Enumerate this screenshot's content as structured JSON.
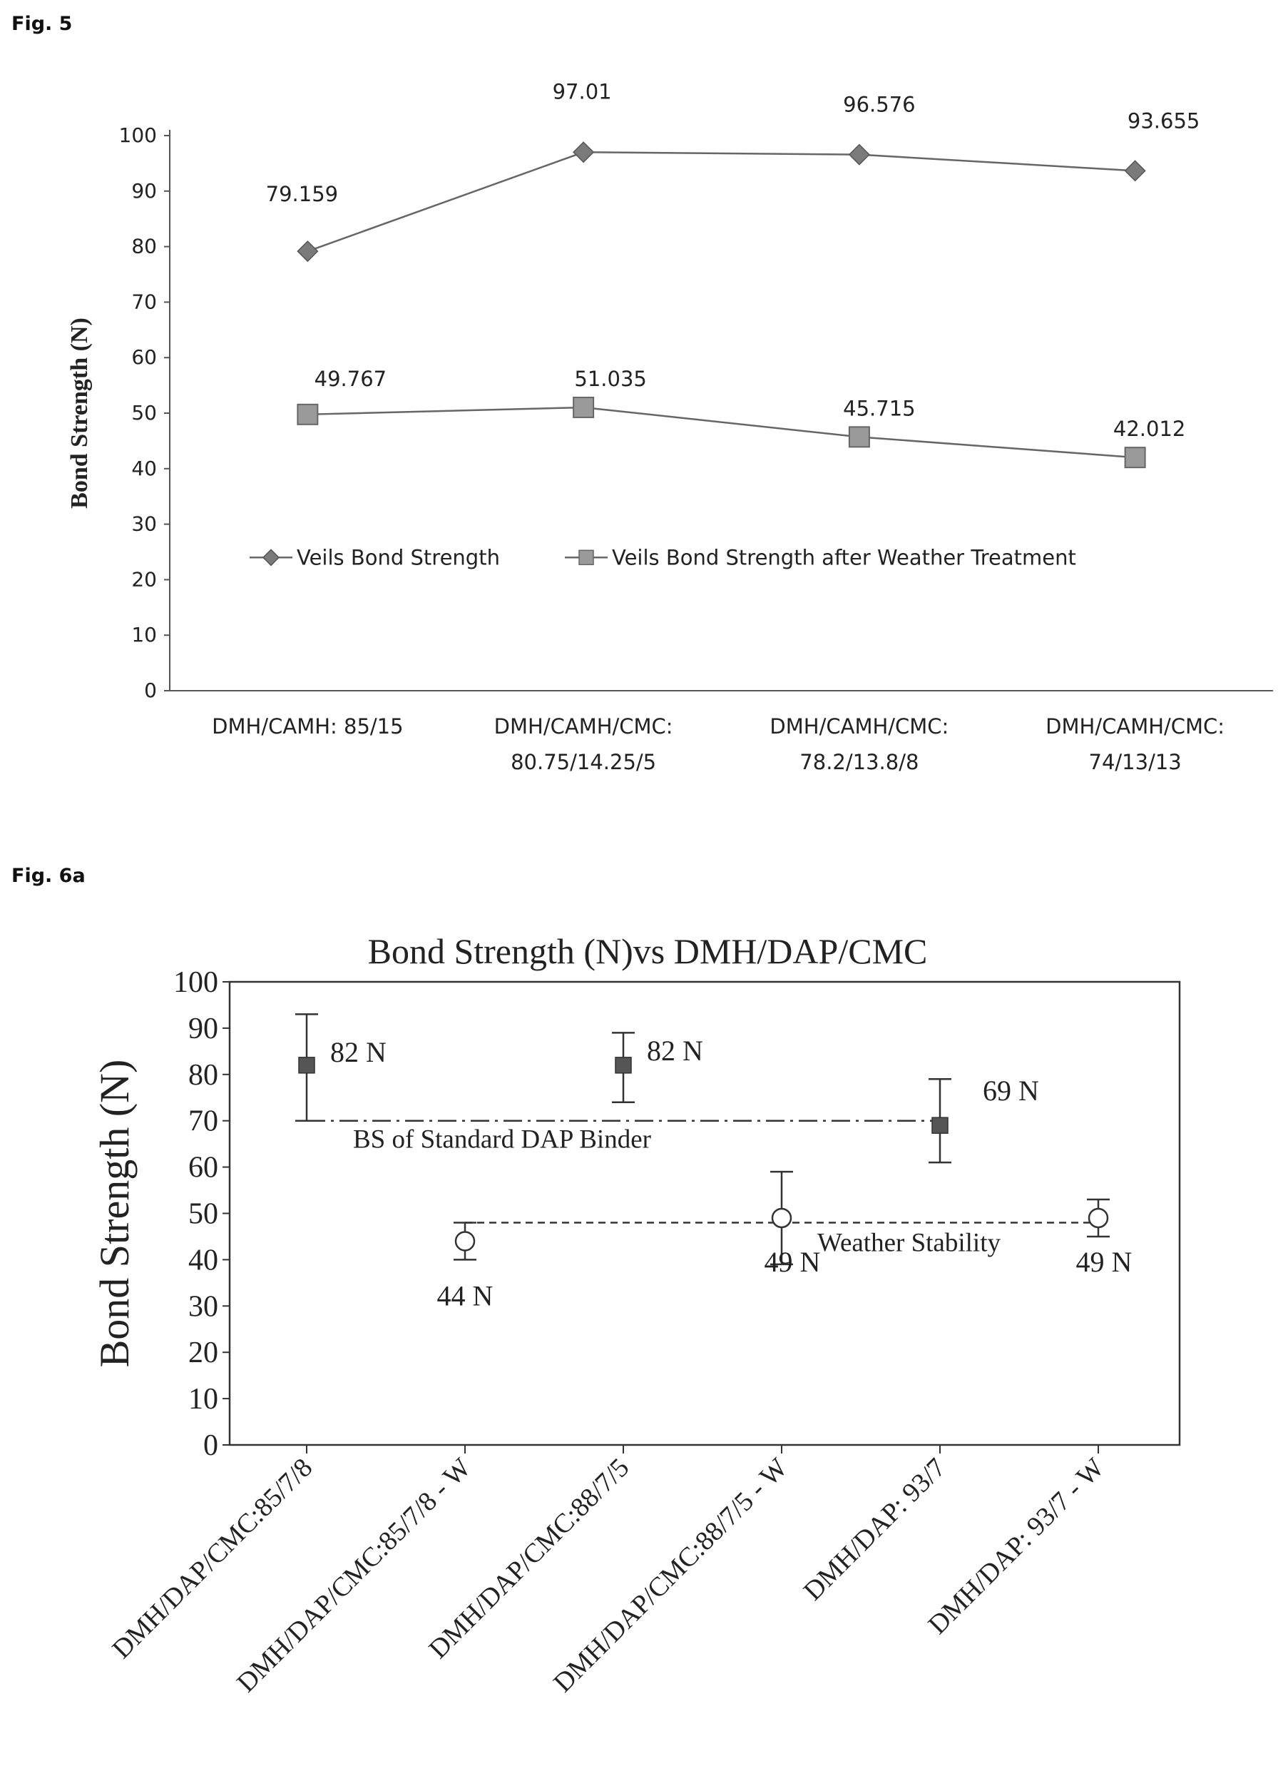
{
  "figures": {
    "fig5_label": "Fig. 5",
    "fig6a_label": "Fig. 6a"
  },
  "chart_data": [
    {
      "type": "line",
      "title": "",
      "xlabel": "",
      "ylabel": "Bond Strength (N)",
      "ylim": [
        0,
        100
      ],
      "yticks": [
        0,
        10,
        20,
        30,
        40,
        50,
        60,
        70,
        80,
        90,
        100
      ],
      "categories": [
        [
          "DMH/CAMH: 85/15"
        ],
        [
          "DMH/CAMH/CMC:",
          "80.75/14.25/5"
        ],
        [
          "DMH/CAMH/CMC:",
          "78.2/13.8/8"
        ],
        [
          "DMH/CAMH/CMC:",
          "74/13/13"
        ]
      ],
      "series": [
        {
          "name": "Veils Bond Strength",
          "marker": "diamond",
          "color": "#7a7a7a",
          "values": [
            79.159,
            97.01,
            96.576,
            93.655
          ],
          "labels": [
            "79.159",
            "97.01",
            "96.576",
            "93.655"
          ]
        },
        {
          "name": "Veils Bond Strength after Weather Treatment",
          "marker": "square",
          "color": "#9a9a9a",
          "values": [
            49.767,
            51.035,
            45.715,
            42.012
          ],
          "labels": [
            "49.767",
            "51.035",
            "45.715",
            "42.012"
          ]
        }
      ],
      "grid": false,
      "legend": "inside-bottom"
    },
    {
      "type": "scatter",
      "title": "Bond Strength (N)vs DMH/DAP/CMC",
      "xlabel": "",
      "ylabel": "Bond Strength (N)",
      "ylim": [
        0,
        100
      ],
      "yticks": [
        0,
        10,
        20,
        30,
        40,
        50,
        60,
        70,
        80,
        90,
        100
      ],
      "categories": [
        "DMH/DAP/CMC:85/7/8",
        "DMH/DAP/CMC:85/7/8 - W",
        "DMH/DAP/CMC:88/7/5",
        "DMH/DAP/CMC:88/7/5 - W",
        "DMH/DAP: 93/7",
        "DMH/DAP: 93/7 - W"
      ],
      "points": [
        {
          "category_index": 0,
          "value": 82,
          "low": 70,
          "high": 93,
          "marker": "filled-square",
          "label": "82 N"
        },
        {
          "category_index": 1,
          "value": 44,
          "low": 40,
          "high": 48,
          "marker": "open-circle",
          "label": "44 N"
        },
        {
          "category_index": 2,
          "value": 82,
          "low": 74,
          "high": 89,
          "marker": "filled-square",
          "label": "82 N"
        },
        {
          "category_index": 3,
          "value": 49,
          "low": 39,
          "high": 59,
          "marker": "open-circle",
          "label": "49 N"
        },
        {
          "category_index": 4,
          "value": 69,
          "low": 61,
          "high": 79,
          "marker": "filled-square",
          "label": "69 N"
        },
        {
          "category_index": 5,
          "value": 49,
          "low": 45,
          "high": 53,
          "marker": "open-circle",
          "label": "49 N"
        }
      ],
      "reference_lines": [
        {
          "label": "BS of Standard DAP Binder",
          "value": 70,
          "from_index": 0,
          "to_index": 4,
          "style": "dash-dot"
        },
        {
          "label": "Weather Stability",
          "value": 48,
          "from_index": 1,
          "to_index": 5,
          "style": "dashed"
        }
      ],
      "grid": false,
      "legend": "none"
    }
  ]
}
